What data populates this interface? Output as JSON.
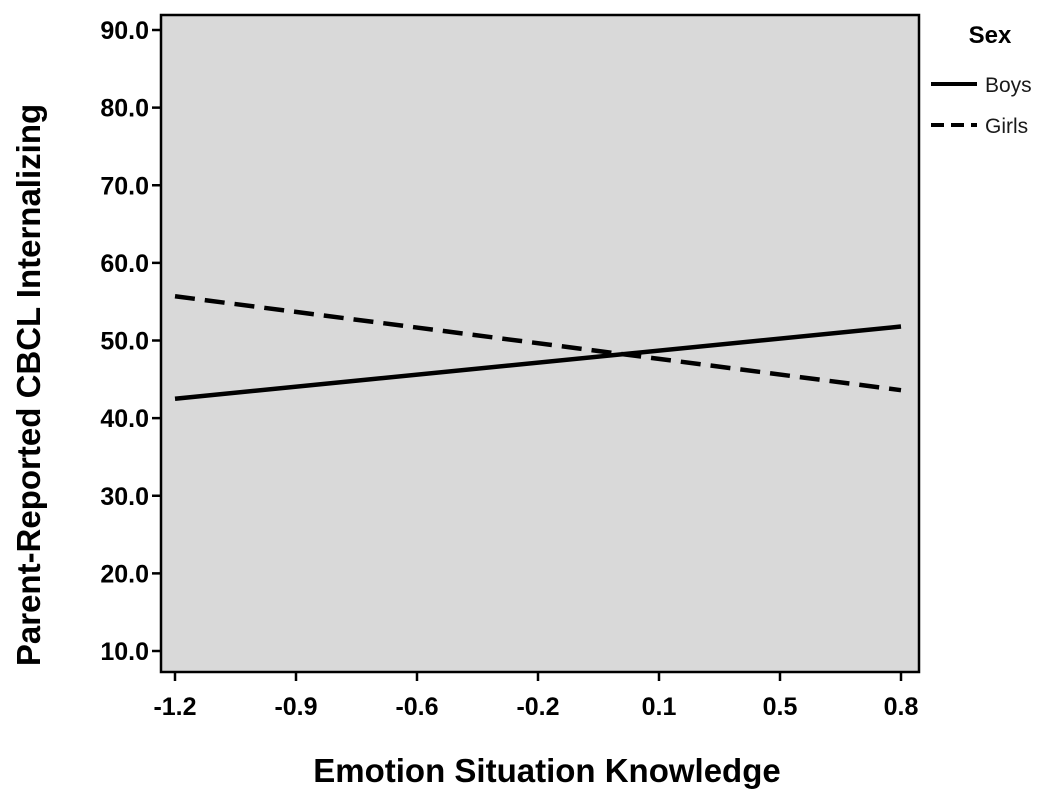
{
  "chart_data": {
    "type": "line",
    "xlabel": "Emotion Situation Knowledge",
    "ylabel": "Parent-Reported CBCL Internalizing",
    "x_tick_labels": [
      "-1.2",
      "-0.9",
      "-0.6",
      "-0.2",
      "0.1",
      "0.5",
      "0.8"
    ],
    "y_ticks": [
      10.0,
      20.0,
      30.0,
      40.0,
      50.0,
      60.0,
      70.0,
      80.0,
      90.0
    ],
    "y_tick_labels": [
      "10.0",
      "20.0",
      "30.0",
      "40.0",
      "50.0",
      "60.0",
      "70.0",
      "80.0",
      "90.0"
    ],
    "xlim": [
      -1.2,
      0.8
    ],
    "ylim": [
      10.0,
      90.0
    ],
    "grid": false,
    "legend": {
      "title": "Sex",
      "position": "right-top"
    },
    "series": [
      {
        "name": "Boys",
        "style": "solid",
        "x": [
          -1.2,
          0.8
        ],
        "y": [
          42.5,
          51.8
        ]
      },
      {
        "name": "Girls",
        "style": "dashed",
        "x": [
          -1.2,
          0.8
        ],
        "y": [
          55.7,
          43.6
        ]
      }
    ],
    "colors": {
      "plot_background": "#d9d9d9",
      "line": "#000000"
    }
  }
}
